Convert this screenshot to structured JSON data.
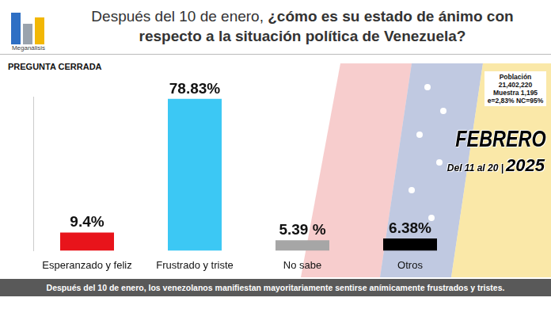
{
  "chart_data": {
    "type": "bar",
    "title": "Después del 10 de enero, ¿cómo es su estado de ánimo con respecto a la situación política de Venezuela?",
    "subtitle": "PREGUNTA CERRADA",
    "categories": [
      "Esperanzado y feliz",
      "Frustrado y triste",
      "No sabe",
      "Otros"
    ],
    "values": [
      9.4,
      78.83,
      5.39,
      6.38
    ],
    "value_labels": [
      "9.4%",
      "78.83%",
      "5.39 %",
      "6.38%"
    ],
    "colors": [
      "#e8141b",
      "#3cc8f4",
      "#a6a6a6",
      "#000000"
    ],
    "ylim": [
      0,
      80
    ],
    "yticks": [],
    "grid": false,
    "data_labels": true,
    "tick_labels": "x",
    "annotations": {
      "logo": "Meganálisis",
      "sample": [
        "Población",
        "21,402,220",
        "Muestra 1,195",
        "e=2,83% NC=95%"
      ],
      "month": "FEBRERO",
      "dates": "Del 11 al 20 |",
      "year": "2025",
      "footer": "Después del 10 de enero, los venezolanos manifiestan mayoritariamente sentirse anímicamente frustrados y tristes."
    }
  }
}
